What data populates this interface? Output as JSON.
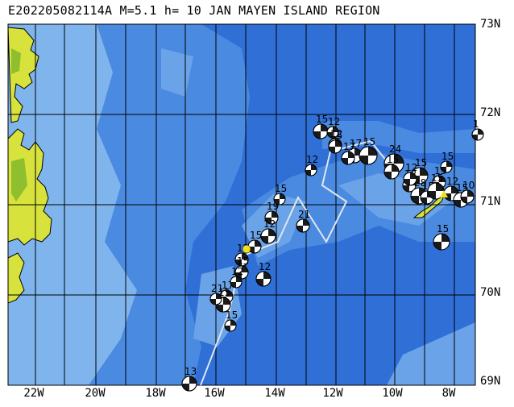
{
  "map": {
    "title": "E202205082114A M=5.1 h= 10 JAN MAYEN ISLAND REGION",
    "latitude_labels": [
      "73N",
      "72N",
      "71N",
      "70N",
      "69N"
    ],
    "longitude_labels": [
      "22W",
      "20W",
      "18W",
      "16W",
      "14W",
      "12W",
      "10W",
      "8W"
    ],
    "colors": {
      "deep_ocean": "#2f6fd6",
      "mid_ocean": "#4a8ae0",
      "shelf": "#7fb5ec",
      "land_yellow": "#d8e23c",
      "land_green": "#8fbf2e",
      "target_event": "#f4e01a",
      "ridge_line": "#dfe6f0"
    },
    "event_labels": [
      "15",
      "12",
      "12",
      "17",
      "15",
      "24",
      "15",
      "15",
      "12",
      "19",
      "12",
      "15",
      "15",
      "12",
      "15",
      "17",
      "15",
      "1",
      "15",
      "12",
      "13",
      "15",
      "21",
      "12",
      "15",
      "12",
      "28",
      "15",
      "15",
      "12",
      "15",
      "10",
      "15",
      "21",
      "15",
      "12",
      "17"
    ]
  }
}
